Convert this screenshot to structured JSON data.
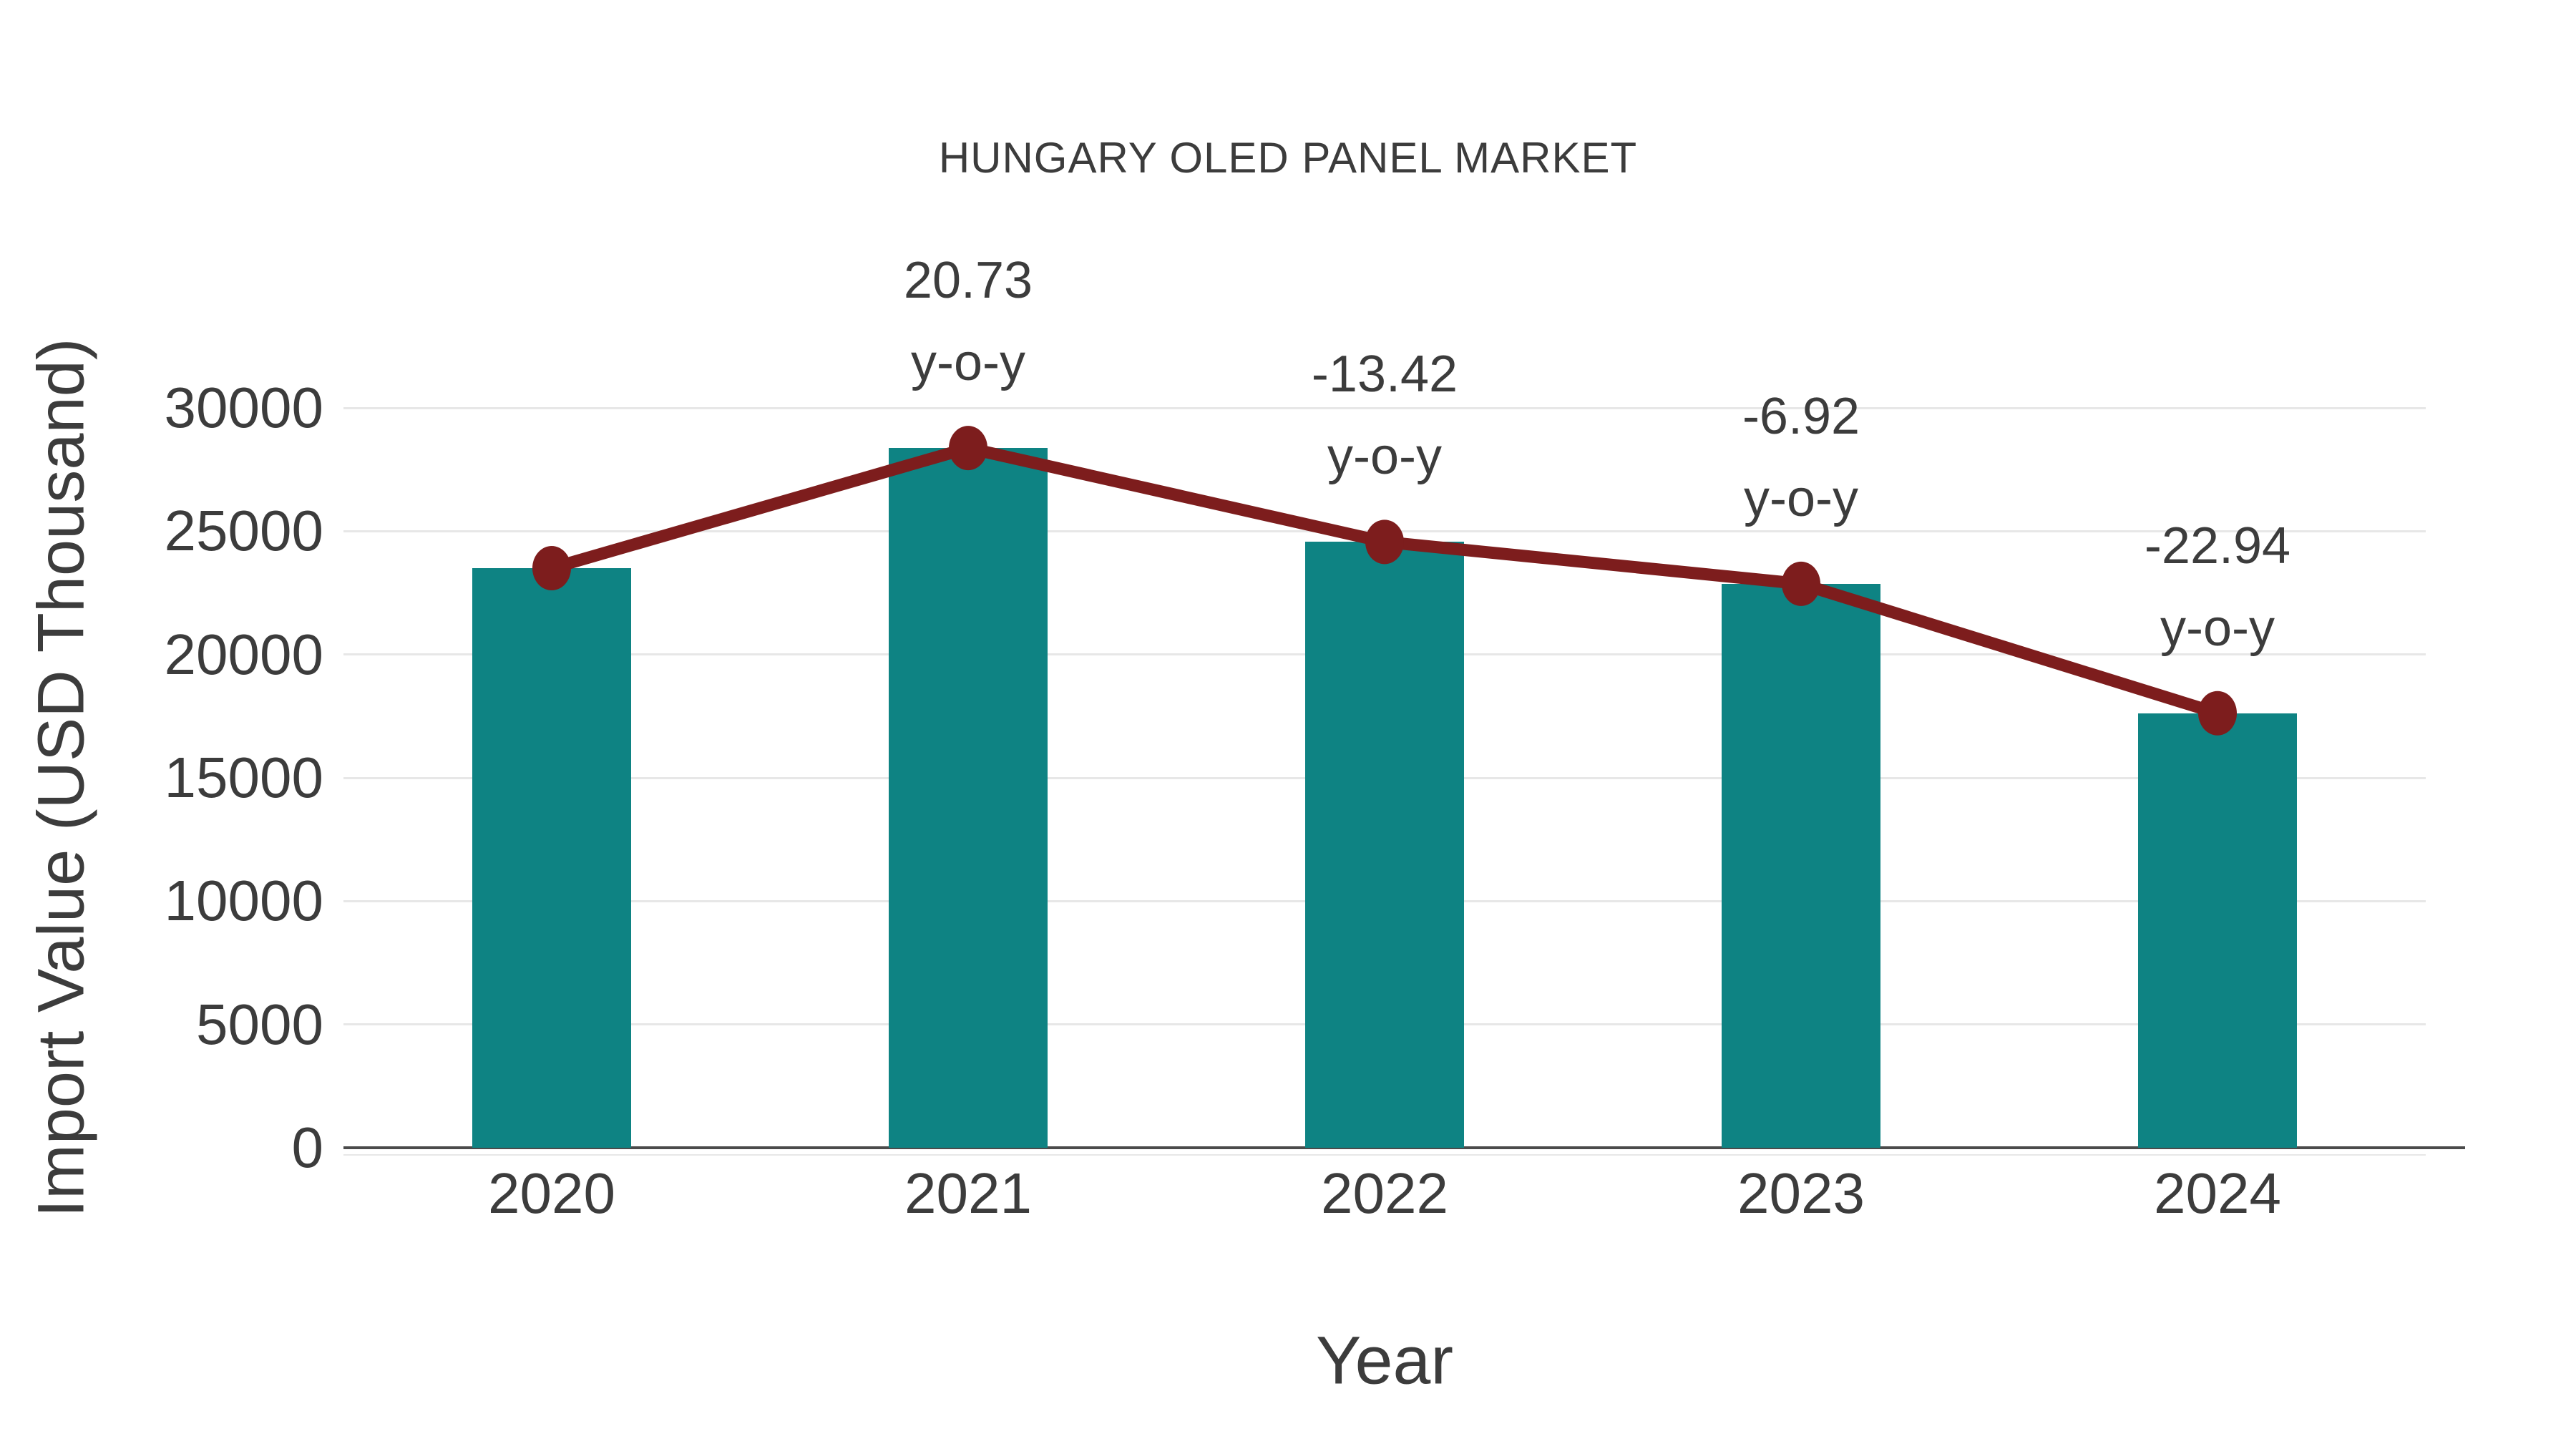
{
  "chart_data": {
    "type": "bar",
    "title": "HUNGARY OLED PANEL MARKET",
    "xlabel": "Year",
    "ylabel": "Import Value (USD Thousand)",
    "categories": [
      "2020",
      "2021",
      "2022",
      "2023",
      "2024"
    ],
    "series": [
      {
        "kind": "bar",
        "values": [
          23500,
          28372,
          24565,
          22865,
          17620
        ]
      },
      {
        "kind": "line-markers",
        "values": [
          23500,
          28372,
          24565,
          22865,
          17620
        ]
      }
    ],
    "annotations": [
      {
        "category": "2021",
        "line1": "20.73",
        "line2": "y-o-y"
      },
      {
        "category": "2022",
        "line1": "-13.42",
        "line2": "y-o-y"
      },
      {
        "category": "2023",
        "line1": "-6.92",
        "line2": "y-o-y"
      },
      {
        "category": "2024",
        "line1": "-22.94",
        "line2": "y-o-y"
      }
    ],
    "ylim": [
      0,
      30000
    ],
    "yticks": [
      0,
      5000,
      10000,
      15000,
      20000,
      25000,
      30000
    ],
    "grid": true,
    "legend_position": "none"
  },
  "colors": {
    "bar": "#0e8383",
    "line": "#7d1d1d",
    "grid": "#e7e7e7",
    "axis": "#4b4b4b",
    "text": "#3c3c3c",
    "background": "#ffffff"
  }
}
